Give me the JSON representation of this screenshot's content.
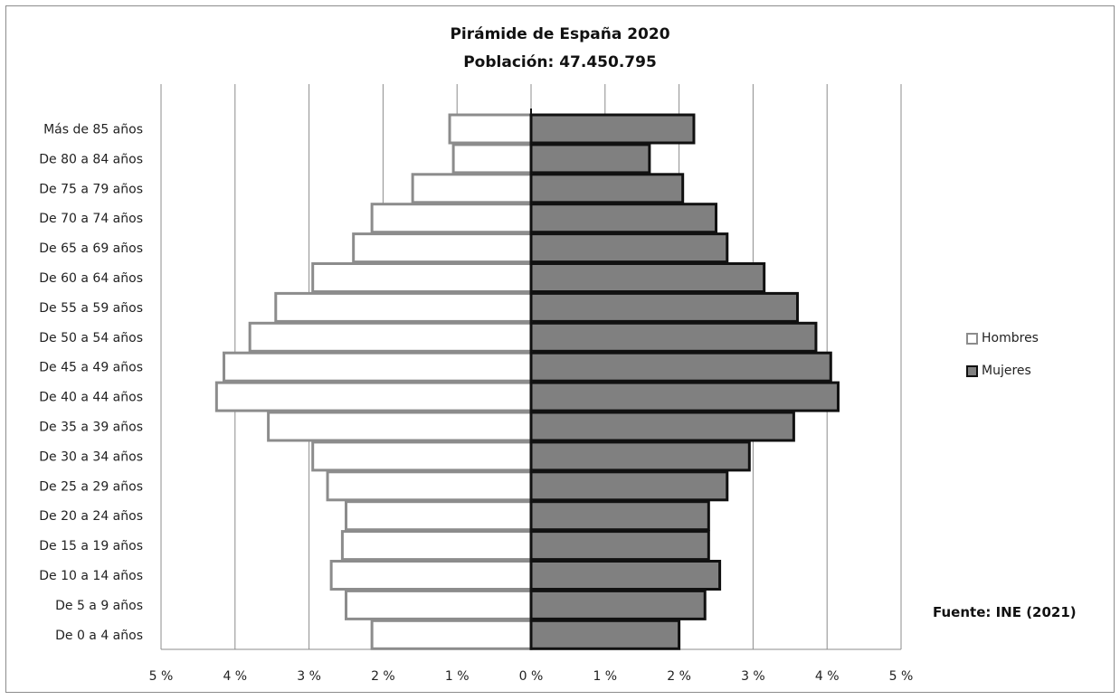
{
  "chart_data": {
    "type": "bar",
    "title": "Pirámide de España 2020",
    "subtitle": "Población: 47.450.795",
    "categories": [
      "Más de 85 años",
      "De 80 a 84 años",
      "De 75 a 79 años",
      "De 70 a 74 años",
      "De 65 a 69 años",
      "De 60 a 64 años",
      "De 55 a 59 años",
      "De 50 a 54 años",
      "De 45 a 49 años",
      "De 40 a 44 años",
      "De 35 a 39 años",
      "De 30 a 34 años",
      "De 25 a 29 años",
      "De 20 a 24 años",
      "De 15 a 19 años",
      "De 10 a 14 años",
      "De 5 a 9 años",
      "De 0 a 4 años"
    ],
    "series": [
      {
        "name": "Hombres",
        "color": "#ffffff",
        "border": "#8c8c8c",
        "values": [
          1.1,
          1.05,
          1.6,
          2.15,
          2.4,
          2.95,
          3.45,
          3.8,
          4.15,
          4.25,
          3.55,
          2.95,
          2.75,
          2.5,
          2.55,
          2.7,
          2.5,
          2.15
        ]
      },
      {
        "name": "Mujeres",
        "color": "#808080",
        "border": "#111111",
        "values": [
          2.2,
          1.6,
          2.05,
          2.5,
          2.65,
          3.15,
          3.6,
          3.85,
          4.05,
          4.15,
          3.55,
          2.95,
          2.65,
          2.4,
          2.4,
          2.55,
          2.35,
          2.0
        ]
      }
    ],
    "xlim": [
      -5,
      5
    ],
    "x_ticks": [
      {
        "value": -5,
        "label": "5",
        "unit": "%"
      },
      {
        "value": -4,
        "label": "4",
        "unit": "%"
      },
      {
        "value": -3,
        "label": "3",
        "unit": "%"
      },
      {
        "value": -2,
        "label": "2",
        "unit": "%"
      },
      {
        "value": -1,
        "label": "1",
        "unit": "%"
      },
      {
        "value": 0,
        "label": "0",
        "unit": "%"
      },
      {
        "value": 1,
        "label": "1",
        "unit": "%"
      },
      {
        "value": 2,
        "label": "2",
        "unit": "%"
      },
      {
        "value": 3,
        "label": "3",
        "unit": "%"
      },
      {
        "value": 4,
        "label": "4",
        "unit": "%"
      },
      {
        "value": 5,
        "label": "5",
        "unit": "%"
      }
    ],
    "grid": true,
    "legend_position": "right",
    "source": "Fuente: INE (2021)"
  }
}
